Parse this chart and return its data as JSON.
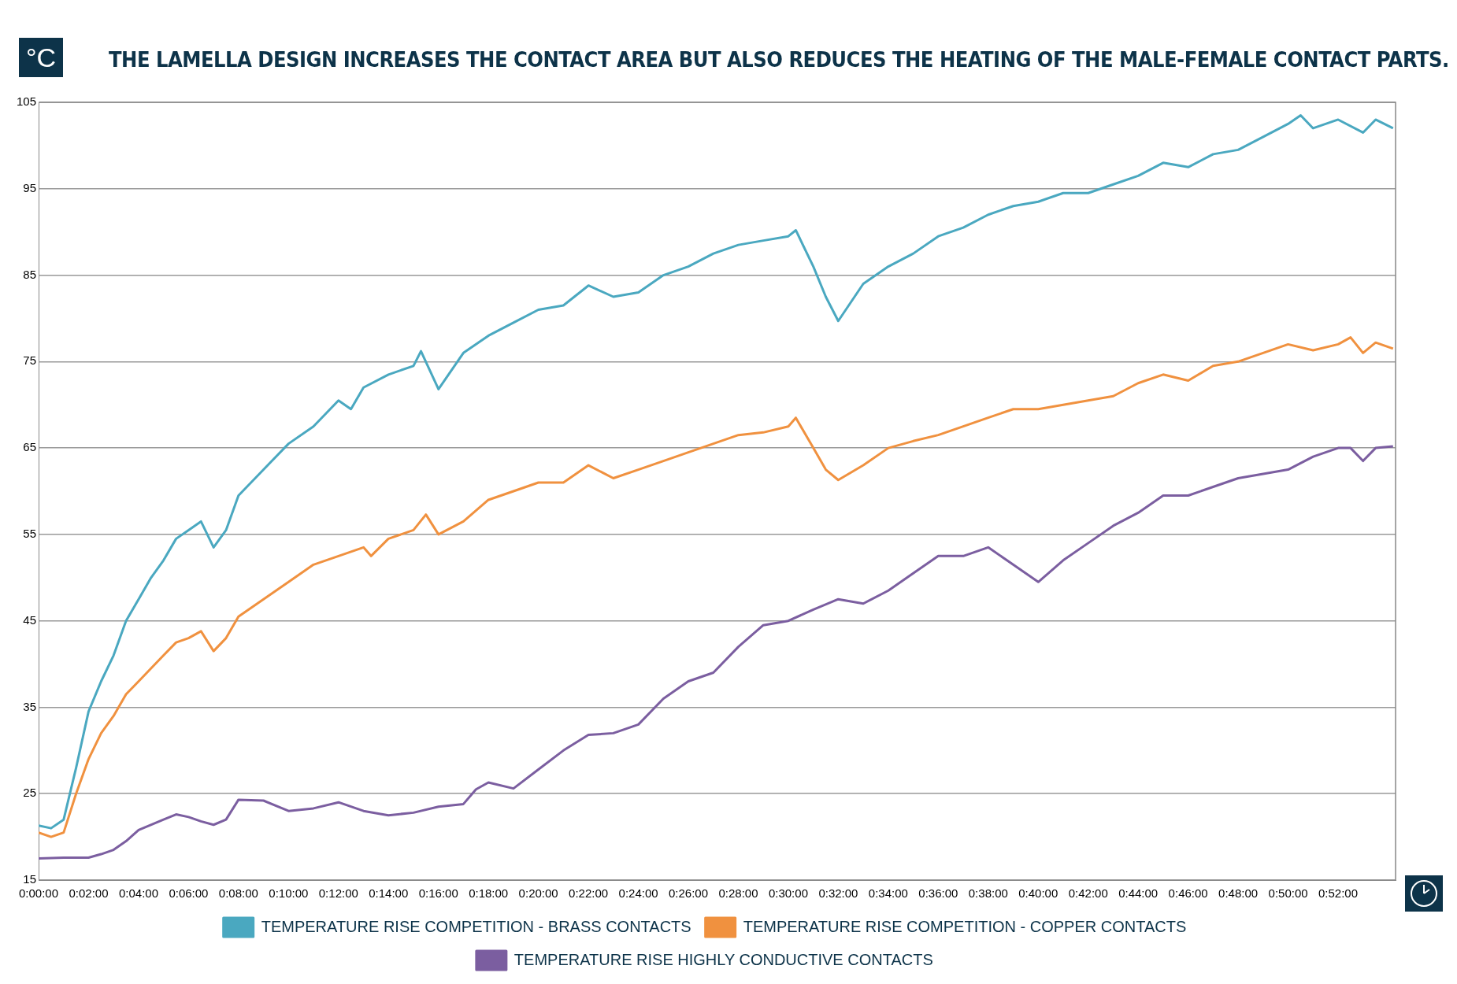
{
  "chart_data": {
    "type": "line",
    "title": "THE LAMELLA DESIGN INCREASES THE CONTACT AREA BUT ALSO REDUCES THE HEATING OF THE MALE-FEMALE CONTACT PARTS.",
    "ylabel": "°C",
    "series": [
      {
        "name": "TEMPERATURE RISE COMPETITION - BRASS CONTACTS",
        "color": "#4aa8c0",
        "x": [
          0,
          0.0083,
          0.0167,
          0.025,
          0.0333,
          0.0417,
          0.05,
          0.0583,
          0.0667,
          0.075,
          0.0833,
          0.0917,
          0.1,
          0.1083,
          0.1167,
          0.125,
          0.1333,
          0.15,
          0.1667,
          0.1833,
          0.2,
          0.2083,
          0.2167,
          0.2333,
          0.25,
          0.255,
          0.2667,
          0.2833,
          0.3,
          0.3167,
          0.3333,
          0.35,
          0.3667,
          0.3833,
          0.4,
          0.4167,
          0.4333,
          0.45,
          0.4667,
          0.4833,
          0.5,
          0.505,
          0.5167,
          0.525,
          0.5333,
          0.55,
          0.5667,
          0.5833,
          0.6,
          0.6167,
          0.6333,
          0.65,
          0.6667,
          0.6833,
          0.7,
          0.7167,
          0.7333,
          0.75,
          0.7667,
          0.7833,
          0.8,
          0.8167,
          0.8333,
          0.8417,
          0.85,
          0.8667,
          0.8833,
          0.8917,
          0.9033
        ],
        "values": [
          21.3,
          21,
          22,
          28,
          34.5,
          38,
          41,
          45,
          47.5,
          50,
          52,
          54.5,
          55.5,
          56.5,
          53.5,
          55.5,
          59.5,
          62.5,
          65.5,
          67.5,
          70.5,
          69.5,
          72,
          73.5,
          74.5,
          76.2,
          71.8,
          76,
          78,
          79.5,
          81,
          81.5,
          83.8,
          82.5,
          83,
          85,
          86,
          87.5,
          88.5,
          89,
          89.5,
          90.2,
          86,
          82.5,
          79.7,
          84,
          86,
          87.5,
          89.5,
          90.5,
          92,
          93,
          93.5,
          94.5,
          94.5,
          95.5,
          96.5,
          98,
          97.5,
          99,
          99.5,
          101,
          102.5,
          103.5,
          102,
          103,
          101.5,
          103,
          102
        ]
      },
      {
        "name": "TEMPERATURE RISE COMPETITION - COPPER CONTACTS",
        "color": "#f0913f",
        "x": [
          0,
          0.0083,
          0.0167,
          0.025,
          0.0333,
          0.0417,
          0.05,
          0.0583,
          0.0667,
          0.075,
          0.0833,
          0.0917,
          0.1,
          0.1083,
          0.1167,
          0.125,
          0.1333,
          0.15,
          0.1667,
          0.1833,
          0.2,
          0.2167,
          0.2217,
          0.2333,
          0.25,
          0.2583,
          0.2667,
          0.2833,
          0.3,
          0.3167,
          0.3333,
          0.35,
          0.3667,
          0.3833,
          0.4,
          0.4167,
          0.4333,
          0.45,
          0.4667,
          0.4833,
          0.5,
          0.505,
          0.5167,
          0.525,
          0.5333,
          0.55,
          0.5667,
          0.5833,
          0.6,
          0.6167,
          0.6333,
          0.65,
          0.6667,
          0.6833,
          0.7,
          0.7167,
          0.7333,
          0.75,
          0.7667,
          0.7833,
          0.8,
          0.8167,
          0.8333,
          0.85,
          0.8667,
          0.875,
          0.8833,
          0.8917,
          0.9033
        ],
        "values": [
          20.5,
          20,
          20.5,
          25,
          29,
          32,
          34,
          36.5,
          38,
          39.5,
          41,
          42.5,
          43,
          43.8,
          41.5,
          43,
          45.5,
          47.5,
          49.5,
          51.5,
          52.5,
          53.5,
          52.5,
          54.5,
          55.5,
          57.3,
          55,
          56.5,
          59,
          60,
          61,
          61,
          63,
          61.5,
          62.5,
          63.5,
          64.5,
          65.5,
          66.5,
          66.8,
          67.5,
          68.5,
          65,
          62.5,
          61.3,
          63,
          65,
          65.8,
          66.5,
          67.5,
          68.5,
          69.5,
          69.5,
          70,
          70.5,
          71,
          72.5,
          73.5,
          72.8,
          74.5,
          75,
          76,
          77,
          76.3,
          77,
          77.8,
          76,
          77.2,
          76.5
        ]
      },
      {
        "name": "TEMPERATURE RISE HIGHLY CONDUCTIVE CONTACTS",
        "color": "#7b5ea0",
        "x": [
          0,
          0.0167,
          0.0333,
          0.0417,
          0.05,
          0.0583,
          0.0667,
          0.0833,
          0.0917,
          0.1,
          0.1083,
          0.1167,
          0.125,
          0.1333,
          0.15,
          0.1667,
          0.1833,
          0.2,
          0.2167,
          0.2333,
          0.25,
          0.2667,
          0.2833,
          0.2917,
          0.3,
          0.3167,
          0.3333,
          0.35,
          0.3667,
          0.3833,
          0.4,
          0.4167,
          0.4333,
          0.45,
          0.4667,
          0.4833,
          0.5,
          0.5167,
          0.5333,
          0.55,
          0.5667,
          0.5833,
          0.6,
          0.6167,
          0.6333,
          0.65,
          0.6667,
          0.6833,
          0.7,
          0.7167,
          0.7333,
          0.75,
          0.7667,
          0.7833,
          0.8,
          0.8167,
          0.8333,
          0.85,
          0.8667,
          0.875,
          0.8833,
          0.8917,
          0.9033
        ],
        "values": [
          17.5,
          17.6,
          17.6,
          18,
          18.5,
          19.5,
          20.8,
          22,
          22.6,
          22.3,
          21.8,
          21.4,
          22,
          24.3,
          24.2,
          23,
          23.3,
          24,
          23,
          22.5,
          22.8,
          23.5,
          23.8,
          25.5,
          26.3,
          25.6,
          27.8,
          30,
          31.8,
          32,
          33,
          36,
          38,
          39,
          42,
          44.5,
          45,
          46.3,
          47.5,
          47,
          48.5,
          50.5,
          52.5,
          52.5,
          53.5,
          51.5,
          49.5,
          52,
          54,
          56,
          57.5,
          59.5,
          59.5,
          60.5,
          61.5,
          62,
          62.5,
          64,
          65,
          65,
          63.5,
          65,
          65.2
        ]
      }
    ],
    "xlim": [
      0,
      0.905
    ],
    "xticks": [
      {
        "value": 0,
        "label": "0:00:00"
      },
      {
        "value": 0.033333,
        "label": "0:02:00"
      },
      {
        "value": 0.066667,
        "label": "0:04:00"
      },
      {
        "value": 0.1,
        "label": "0:06:00"
      },
      {
        "value": 0.133333,
        "label": "0:08:00"
      },
      {
        "value": 0.166667,
        "label": "0:10:00"
      },
      {
        "value": 0.2,
        "label": "0:12:00"
      },
      {
        "value": 0.233333,
        "label": "0:14:00"
      },
      {
        "value": 0.266667,
        "label": "0:16:00"
      },
      {
        "value": 0.3,
        "label": "0:18:00"
      },
      {
        "value": 0.333333,
        "label": "0:20:00"
      },
      {
        "value": 0.366667,
        "label": "0:22:00"
      },
      {
        "value": 0.4,
        "label": "0:24:00"
      },
      {
        "value": 0.433333,
        "label": "0:26:00"
      },
      {
        "value": 0.466667,
        "label": "0:28:00"
      },
      {
        "value": 0.5,
        "label": "0:30:00"
      },
      {
        "value": 0.533333,
        "label": "0:32:00"
      },
      {
        "value": 0.566667,
        "label": "0:34:00"
      },
      {
        "value": 0.6,
        "label": "0:36:00"
      },
      {
        "value": 0.633333,
        "label": "0:38:00"
      },
      {
        "value": 0.666667,
        "label": "0:40:00"
      },
      {
        "value": 0.7,
        "label": "0:42:00"
      },
      {
        "value": 0.733333,
        "label": "0:44:00"
      },
      {
        "value": 0.766667,
        "label": "0:46:00"
      },
      {
        "value": 0.8,
        "label": "0:48:00"
      },
      {
        "value": 0.833333,
        "label": "0:50:00"
      },
      {
        "value": 0.866667,
        "label": "0:52:00"
      }
    ],
    "ylim": [
      15,
      105
    ],
    "yticks": [
      15,
      25,
      35,
      45,
      55,
      65,
      75,
      85,
      95,
      105
    ],
    "grid": "y",
    "legend": "bottom",
    "marker": "none",
    "line_style": "solid"
  }
}
